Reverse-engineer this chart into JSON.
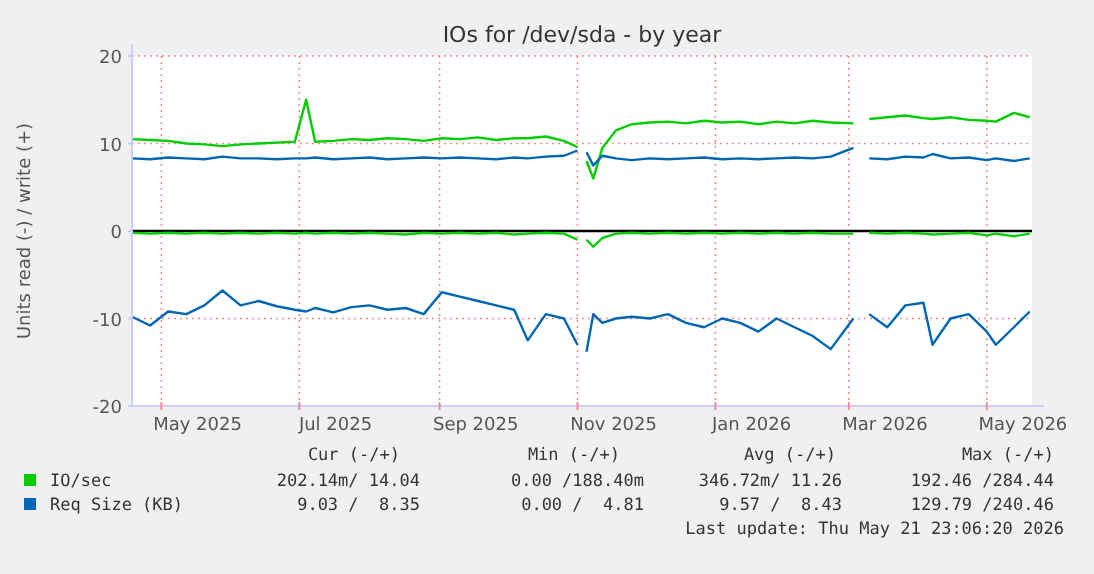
{
  "chart_data": {
    "type": "line",
    "title": "IOs for /dev/sda - by year",
    "ylabel": "Units read (-) / write (+)",
    "x": [
      "2025-04-18",
      "2025-04-26",
      "2025-05-04",
      "2025-05-12",
      "2025-05-20",
      "2025-05-28",
      "2025-06-05",
      "2025-06-13",
      "2025-06-21",
      "2025-06-29",
      "2025-07-04",
      "2025-07-08",
      "2025-07-16",
      "2025-07-24",
      "2025-08-01",
      "2025-08-09",
      "2025-08-17",
      "2025-08-25",
      "2025-09-02",
      "2025-09-10",
      "2025-09-18",
      "2025-09-26",
      "2025-10-04",
      "2025-10-10",
      "2025-10-18",
      "2025-10-26",
      "2025-11-01",
      "2025-11-03",
      "2025-11-05",
      "2025-11-08",
      "2025-11-12",
      "2025-11-18",
      "2025-11-25",
      "2025-12-03",
      "2025-12-11",
      "2025-12-19",
      "2025-12-27",
      "2026-01-04",
      "2026-01-12",
      "2026-01-20",
      "2026-01-28",
      "2026-02-05",
      "2026-02-13",
      "2026-02-21",
      "2026-03-03",
      "2026-03-06",
      "2026-03-10",
      "2026-03-18",
      "2026-03-26",
      "2026-04-03",
      "2026-04-07",
      "2026-04-15",
      "2026-04-23",
      "2026-05-01",
      "2026-05-05",
      "2026-05-13",
      "2026-05-20"
    ],
    "series": [
      {
        "name": "IO/sec",
        "color": "#00cc00",
        "values": [
          10.5,
          10.4,
          10.3,
          10.0,
          9.9,
          9.7,
          9.9,
          10.0,
          10.1,
          10.2,
          15.0,
          10.2,
          10.3,
          10.5,
          10.4,
          10.6,
          10.5,
          10.3,
          10.6,
          10.5,
          10.7,
          10.4,
          10.6,
          10.6,
          10.8,
          10.3,
          9.6,
          null,
          8.0,
          6.0,
          9.5,
          11.5,
          12.2,
          12.4,
          12.5,
          12.3,
          12.6,
          12.4,
          12.5,
          12.2,
          12.5,
          12.3,
          12.6,
          12.4,
          12.3,
          null,
          12.8,
          13.0,
          13.2,
          12.9,
          12.8,
          13.0,
          12.7,
          12.6,
          12.5,
          13.5,
          13.0
        ]
      },
      {
        "color": "#00cc00",
        "values": [
          -0.2,
          -0.3,
          -0.2,
          -0.3,
          -0.2,
          -0.3,
          -0.2,
          -0.3,
          -0.2,
          -0.3,
          -0.2,
          -0.3,
          -0.2,
          -0.3,
          -0.2,
          -0.3,
          -0.4,
          -0.2,
          -0.3,
          -0.2,
          -0.3,
          -0.2,
          -0.4,
          -0.3,
          -0.2,
          -0.3,
          -1.0,
          null,
          -1.0,
          -1.8,
          -0.8,
          -0.3,
          -0.2,
          -0.3,
          -0.2,
          -0.3,
          -0.2,
          -0.3,
          -0.2,
          -0.3,
          -0.2,
          -0.3,
          -0.2,
          -0.3,
          -0.3,
          null,
          -0.2,
          -0.3,
          -0.2,
          -0.3,
          -0.4,
          -0.3,
          -0.2,
          -0.5,
          -0.3,
          -0.6,
          -0.3
        ]
      },
      {
        "name": "Req Size (KB)",
        "color": "#0066b3",
        "values": [
          8.3,
          8.2,
          8.4,
          8.3,
          8.2,
          8.5,
          8.3,
          8.3,
          8.2,
          8.3,
          8.3,
          8.4,
          8.2,
          8.3,
          8.4,
          8.2,
          8.3,
          8.4,
          8.3,
          8.4,
          8.3,
          8.2,
          8.4,
          8.3,
          8.5,
          8.6,
          9.2,
          null,
          9.0,
          7.5,
          8.6,
          8.3,
          8.1,
          8.3,
          8.2,
          8.3,
          8.4,
          8.2,
          8.3,
          8.2,
          8.3,
          8.4,
          8.3,
          8.5,
          9.5,
          null,
          8.3,
          8.2,
          8.5,
          8.4,
          8.8,
          8.3,
          8.4,
          8.1,
          8.3,
          8.0,
          8.3
        ]
      },
      {
        "color": "#0066b3",
        "values": [
          -9.8,
          -10.8,
          -9.2,
          -9.5,
          -8.5,
          -6.8,
          -8.5,
          -8.0,
          -8.6,
          -9.0,
          -9.2,
          -8.8,
          -9.3,
          -8.7,
          -8.5,
          -9.0,
          -8.8,
          -9.5,
          -7.0,
          -7.5,
          -8.0,
          -8.5,
          -9.0,
          -12.5,
          -9.5,
          -10.0,
          -13.0,
          null,
          -13.8,
          -9.5,
          -10.5,
          -10.0,
          -9.8,
          -10.0,
          -9.5,
          -10.5,
          -11.0,
          -10.0,
          -10.5,
          -11.5,
          -10.0,
          -11.0,
          -12.0,
          -13.5,
          -10.0,
          null,
          -9.5,
          -11.0,
          -8.5,
          -8.2,
          -13.0,
          -10.0,
          -9.5,
          -11.5,
          -13.0,
          -11.0,
          -9.2
        ]
      }
    ],
    "xlim": [
      "2025-04-18",
      "2026-05-21"
    ],
    "xticks": [
      {
        "value": "2025-05-01",
        "label": null
      },
      {
        "value": "2025-05-17",
        "label": "May 2025"
      },
      {
        "value": "2025-07-01",
        "label": null
      },
      {
        "value": "2025-07-17",
        "label": "Jul 2025"
      },
      {
        "value": "2025-09-01",
        "label": null
      },
      {
        "value": "2025-09-17",
        "label": "Sep 2025"
      },
      {
        "value": "2025-11-01",
        "label": null
      },
      {
        "value": "2025-11-17",
        "label": "Nov 2025"
      },
      {
        "value": "2026-01-01",
        "label": null
      },
      {
        "value": "2026-01-17",
        "label": "Jan 2026"
      },
      {
        "value": "2026-03-01",
        "label": null
      },
      {
        "value": "2026-03-17",
        "label": "Mar 2026"
      },
      {
        "value": "2026-05-01",
        "label": null
      },
      {
        "value": "2026-05-17",
        "label": "May 2026"
      }
    ],
    "ylim": [
      -20,
      20
    ],
    "yticks": [
      -20,
      -10,
      0,
      10,
      20
    ],
    "ref_lines": [
      {
        "axis": "y",
        "value": 0,
        "color": "#000000"
      }
    ],
    "grid": true,
    "legend": "bottom",
    "marker": "none",
    "line_style": "solid",
    "annotations": [
      "Cur (-/+)",
      "Min (-/+)",
      "Avg (-/+)",
      "Max (-/+)",
      "202.14m/ 14.04",
      "0.00 /188.40m",
      "346.72m/ 11.26",
      "192.46 /284.44",
      "9.03 /  8.35",
      "0.00 /  4.81",
      "9.57 /  8.43",
      "129.79 /240.46",
      "Last update: Thu May 21 23:06:20 2026"
    ]
  }
}
